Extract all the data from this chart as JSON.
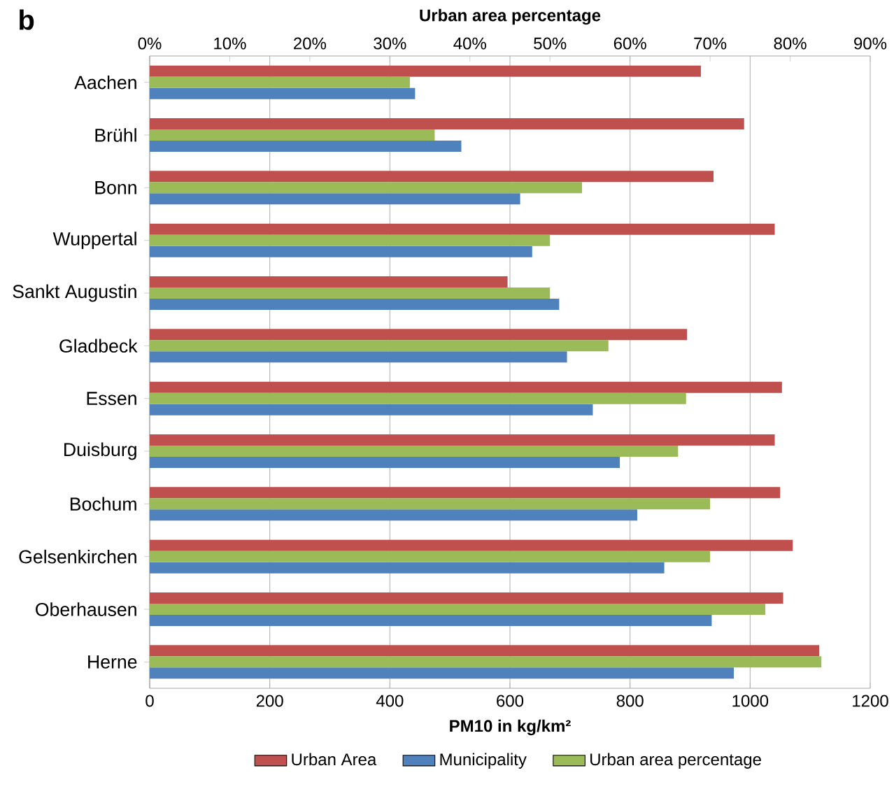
{
  "chart_data": {
    "type": "bar",
    "orientation": "horizontal",
    "annotations": [
      "b"
    ],
    "categories": [
      "Aachen",
      "Brühl",
      "Bonn",
      "Wuppertal",
      "Sankt Augustin",
      "Gladbeck",
      "Essen",
      "Duisburg",
      "Bochum",
      "Gelsenkirchen",
      "Oberhausen",
      "Herne"
    ],
    "xlabel": "PM10 in kg/km²",
    "x2label": "Urban area percentage",
    "xlim": [
      0,
      1200
    ],
    "xticks": [
      0,
      200,
      400,
      600,
      800,
      1000,
      1200
    ],
    "x2lim": [
      0,
      90
    ],
    "x2ticks": [
      {
        "value": 0,
        "label": "0%"
      },
      {
        "value": 10,
        "label": "10%"
      },
      {
        "value": 20,
        "label": "20%"
      },
      {
        "value": 30,
        "label": "30%"
      },
      {
        "value": 40,
        "label": "40%"
      },
      {
        "value": 50,
        "label": "50%"
      },
      {
        "value": 60,
        "label": "60%"
      },
      {
        "value": 70,
        "label": "70%"
      },
      {
        "value": 80,
        "label": "80%"
      },
      {
        "value": 90,
        "label": "90%"
      }
    ],
    "grid": "x",
    "legend": "bottom",
    "series": [
      {
        "name": "Urban Area",
        "color": "#c0504d",
        "values": [
          918,
          990,
          939,
          1041,
          596,
          895,
          1053,
          1041,
          1050,
          1071,
          1055,
          1115
        ]
      },
      {
        "name": "Municipality",
        "color": "#4f81bd",
        "values": [
          442,
          519,
          617,
          637,
          682,
          695,
          738,
          783,
          812,
          857,
          936,
          973
        ]
      },
      {
        "name": "Urban area percentage",
        "color": "#9bbb59",
        "axis": "x2",
        "values": [
          32.5,
          35.6,
          54.0,
          50.0,
          50.0,
          57.3,
          67.0,
          66.0,
          70.0,
          70.0,
          76.9,
          83.9
        ]
      }
    ]
  }
}
